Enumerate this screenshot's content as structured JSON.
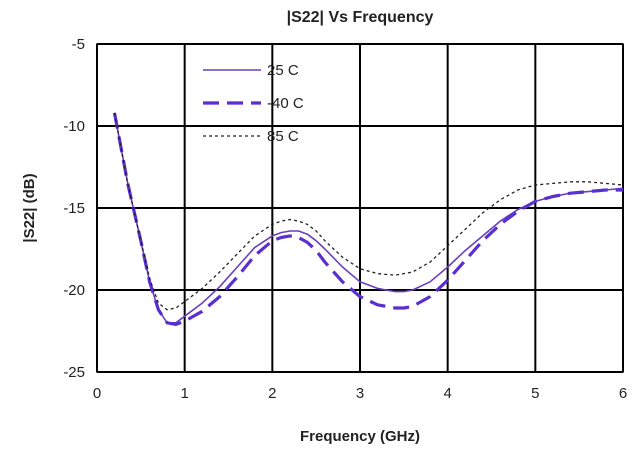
{
  "chart_data": {
    "type": "line",
    "title": "|S22| Vs Frequency",
    "xlabel": "Frequency (GHz)",
    "ylabel": "|S22| (dB)",
    "xlim": [
      0,
      6
    ],
    "ylim": [
      -25,
      -5
    ],
    "xticks": [
      0,
      1,
      2,
      3,
      4,
      5,
      6
    ],
    "yticks": [
      -25,
      -20,
      -15,
      -10,
      -5
    ],
    "grid": true,
    "legend_position": "top-left",
    "series": [
      {
        "name": "25 C",
        "style": "solid",
        "color": "#6a3fbf",
        "x": [
          0.2,
          0.35,
          0.5,
          0.6,
          0.7,
          0.8,
          0.9,
          1.0,
          1.2,
          1.4,
          1.6,
          1.8,
          2.0,
          2.1,
          2.2,
          2.3,
          2.4,
          2.5,
          2.6,
          2.8,
          3.0,
          3.2,
          3.4,
          3.5,
          3.6,
          3.8,
          4.0,
          4.2,
          4.4,
          4.6,
          4.8,
          5.0,
          5.2,
          5.4,
          5.6,
          5.8,
          6.0
        ],
        "y": [
          -9.2,
          -13.5,
          -17.0,
          -19.5,
          -21.2,
          -22.0,
          -22.0,
          -21.6,
          -20.8,
          -19.8,
          -18.6,
          -17.4,
          -16.7,
          -16.5,
          -16.4,
          -16.4,
          -16.6,
          -17.0,
          -17.5,
          -18.6,
          -19.5,
          -19.9,
          -20.1,
          -20.1,
          -20.0,
          -19.5,
          -18.6,
          -17.6,
          -16.7,
          -15.8,
          -15.1,
          -14.6,
          -14.3,
          -14.1,
          -14.0,
          -13.9,
          -13.8
        ]
      },
      {
        "name": "-40 C",
        "style": "dashed",
        "color": "#5a2fd0",
        "x": [
          0.2,
          0.35,
          0.5,
          0.6,
          0.7,
          0.8,
          0.9,
          1.0,
          1.2,
          1.4,
          1.6,
          1.8,
          2.0,
          2.1,
          2.2,
          2.3,
          2.4,
          2.5,
          2.6,
          2.8,
          3.0,
          3.2,
          3.4,
          3.5,
          3.6,
          3.8,
          4.0,
          4.2,
          4.4,
          4.6,
          4.8,
          5.0,
          5.2,
          5.4,
          5.6,
          5.8,
          6.0
        ],
        "y": [
          -9.2,
          -13.5,
          -17.0,
          -19.5,
          -21.2,
          -22.0,
          -22.1,
          -21.9,
          -21.3,
          -20.4,
          -19.2,
          -17.9,
          -17.0,
          -16.8,
          -16.7,
          -16.8,
          -17.1,
          -17.6,
          -18.3,
          -19.5,
          -20.4,
          -20.9,
          -21.1,
          -21.1,
          -21.0,
          -20.4,
          -19.4,
          -18.2,
          -17.0,
          -16.0,
          -15.2,
          -14.6,
          -14.3,
          -14.1,
          -14.0,
          -13.9,
          -13.9
        ]
      },
      {
        "name": "85 C",
        "style": "dotted",
        "color": "#222222",
        "x": [
          0.2,
          0.35,
          0.5,
          0.6,
          0.7,
          0.8,
          0.9,
          1.0,
          1.2,
          1.4,
          1.6,
          1.8,
          2.0,
          2.1,
          2.2,
          2.3,
          2.4,
          2.5,
          2.6,
          2.8,
          3.0,
          3.2,
          3.4,
          3.5,
          3.6,
          3.8,
          4.0,
          4.2,
          4.4,
          4.6,
          4.8,
          5.0,
          5.2,
          5.4,
          5.6,
          5.8,
          6.0
        ],
        "y": [
          -9.2,
          -13.5,
          -17.0,
          -19.3,
          -20.8,
          -21.2,
          -21.1,
          -20.7,
          -19.9,
          -18.9,
          -17.8,
          -16.7,
          -16.0,
          -15.8,
          -15.7,
          -15.8,
          -16.0,
          -16.4,
          -17.0,
          -18.0,
          -18.7,
          -19.0,
          -19.1,
          -19.0,
          -18.9,
          -18.3,
          -17.3,
          -16.3,
          -15.3,
          -14.5,
          -13.9,
          -13.6,
          -13.5,
          -13.4,
          -13.4,
          -13.5,
          -13.6
        ]
      }
    ]
  }
}
